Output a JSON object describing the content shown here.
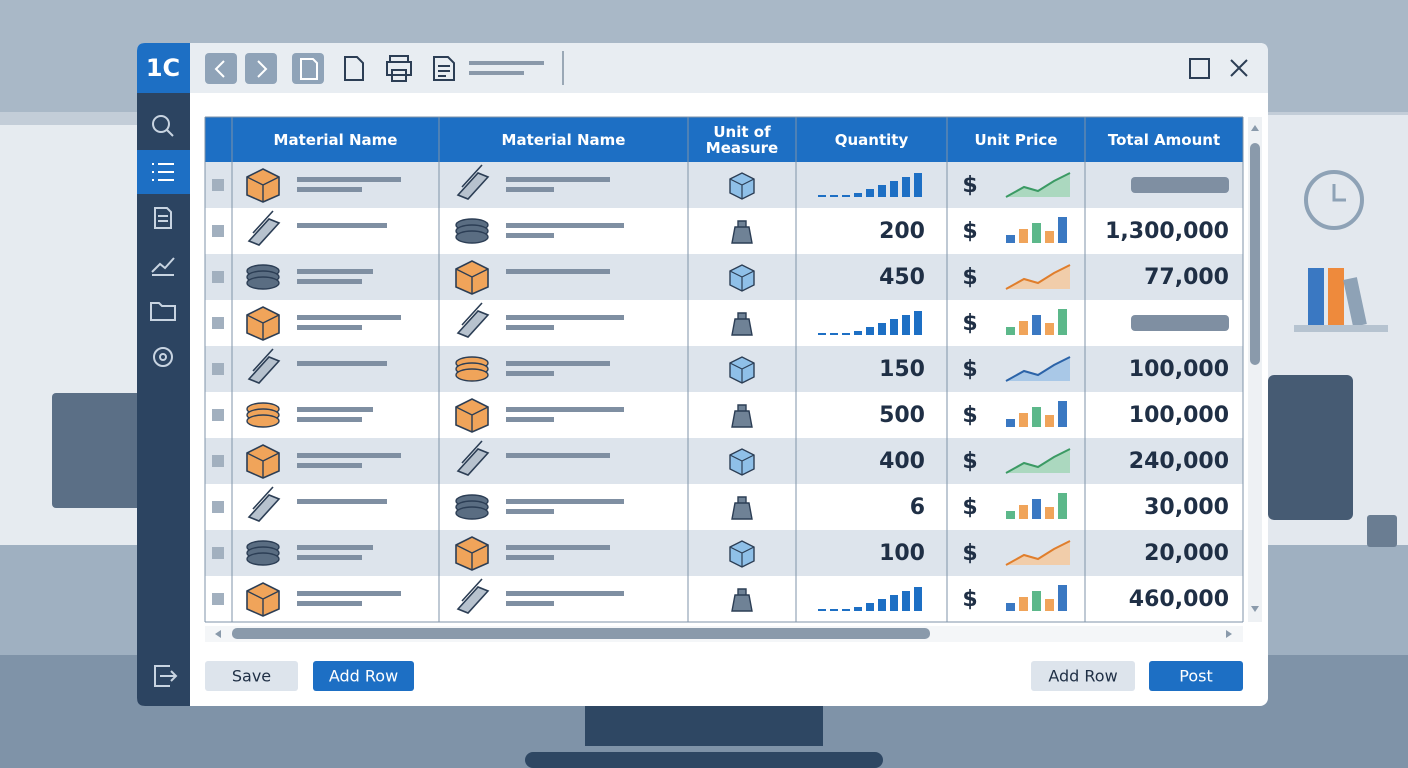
{
  "app": {
    "logo": "1C"
  },
  "table": {
    "columns": [
      "Material Name",
      "Material Name",
      "Unit of Measure",
      "Quantity",
      "Unit Price",
      "Total Amount"
    ],
    "currency": "$",
    "rows": [
      {},
      {
        "quantity": "200",
        "total": "1,300,000"
      },
      {
        "quantity": "450",
        "total": "77,000"
      },
      {},
      {
        "quantity": "150",
        "total": "100,000"
      },
      {
        "quantity": "500",
        "total": "100,000"
      },
      {
        "quantity": "400",
        "total": "240,000"
      },
      {
        "quantity": "6",
        "total": "30,000"
      },
      {
        "quantity": "100",
        "total": "20,000"
      },
      {
        "total": "460,000"
      }
    ]
  },
  "buttons": [
    "Save",
    "Add Row",
    "Add Row",
    "Post"
  ]
}
